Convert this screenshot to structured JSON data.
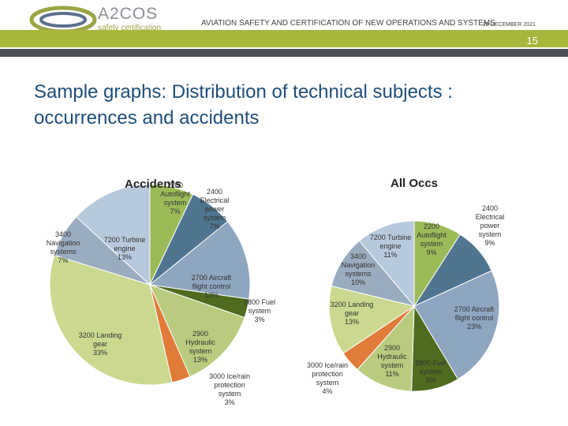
{
  "header": {
    "logo_text": "A2COS",
    "logo_sub": "safety certification",
    "title": "AVIATION SAFETY AND CERTIFICATION OF NEW OPERATIONS AND SYSTEMS",
    "date": "29 DECEMBER 2021",
    "page_number": "15"
  },
  "slide_title": "Sample graphs: Distribution of technical subjects : occurrences and accidents",
  "colors": {
    "accent_green": "#a9b63c",
    "dark_bar": "#4a4f55",
    "title_blue": "#1f4e79"
  },
  "chart_data": [
    {
      "type": "pie",
      "title": "Accidents",
      "series": [
        {
          "label": [
            "2200",
            "Autoflight",
            "system",
            "7%"
          ],
          "value": 7,
          "color": "#9bbb59"
        },
        {
          "label": [
            "2400",
            "Electrical",
            "power",
            "system",
            "7%"
          ],
          "value": 7,
          "color": "#4f7591"
        },
        {
          "label": [
            "2700 Aircraft",
            "flight control",
            "13%"
          ],
          "value": 13,
          "color": "#8ea6bf"
        },
        {
          "label": [
            "2800 Fuel",
            "system",
            "3%"
          ],
          "value": 3,
          "color": "#4e6b1f"
        },
        {
          "label": [
            "2900",
            "Hydraulic",
            "system",
            "13%"
          ],
          "value": 13,
          "color": "#b9cb7e"
        },
        {
          "label": [
            "3000 Ice/rain",
            "protection",
            "system",
            "3%"
          ],
          "value": 3,
          "color": "#e07b39"
        },
        {
          "label": [
            "3200 Landing",
            "gear",
            "33%"
          ],
          "value": 33,
          "color": "#cad98f"
        },
        {
          "label": [
            "3400",
            "Navigation",
            "systems",
            "7%"
          ],
          "value": 7,
          "color": "#9aacbf"
        },
        {
          "label": [
            "7200 Turbine",
            "engine",
            "13%"
          ],
          "value": 13,
          "color": "#b7c9dc"
        }
      ]
    },
    {
      "type": "pie",
      "title": "All Occs",
      "series": [
        {
          "label": [
            "2200",
            "Autoflight",
            "system",
            "9%"
          ],
          "value": 9,
          "color": "#9bbb59"
        },
        {
          "label": [
            "2400",
            "Electrical",
            "power",
            "system",
            "9%"
          ],
          "value": 9,
          "color": "#4f7591"
        },
        {
          "label": [
            "2700 Aircraft",
            "flight control",
            "23%"
          ],
          "value": 23,
          "color": "#8ea6bf"
        },
        {
          "label": [
            "2800 Fuel",
            "system",
            "9%"
          ],
          "value": 9,
          "color": "#4e6b1f"
        },
        {
          "label": [
            "2900",
            "Hydraulic",
            "system",
            "11%"
          ],
          "value": 11,
          "color": "#b9cb7e"
        },
        {
          "label": [
            "3000 Ice/rain",
            "protection",
            "system",
            "4%"
          ],
          "value": 4,
          "color": "#e07b39"
        },
        {
          "label": [
            "3200 Landing",
            "gear",
            "13%"
          ],
          "value": 13,
          "color": "#cad98f"
        },
        {
          "label": [
            "3400",
            "Navigation",
            "systems",
            "10%"
          ],
          "value": 10,
          "color": "#9aacbf"
        },
        {
          "label": [
            "7200 Turbine",
            "engine",
            "11%"
          ],
          "value": 11,
          "color": "#b7c9dc"
        }
      ]
    }
  ]
}
